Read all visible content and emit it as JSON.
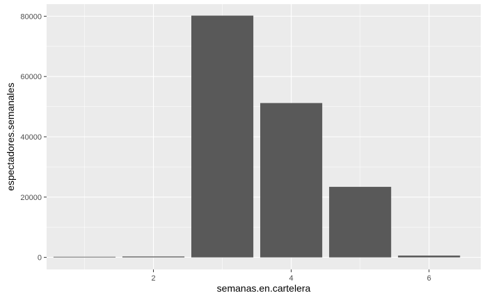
{
  "chart_data": {
    "type": "bar",
    "title": "",
    "xlabel": "semanas.en.cartelera",
    "ylabel": "espectadores.semanales",
    "x": [
      1,
      2,
      3,
      4,
      5,
      6
    ],
    "values": [
      200,
      300,
      80200,
      51200,
      23400,
      600
    ],
    "xlim": [
      0.45,
      6.75
    ],
    "ylim": [
      -4000,
      84000
    ],
    "x_ticks": [
      2,
      4,
      6
    ],
    "x_tick_labels": [
      "2",
      "4",
      "6"
    ],
    "y_ticks": [
      0,
      20000,
      40000,
      60000,
      80000
    ],
    "y_tick_labels": [
      "0",
      "20000",
      "40000",
      "60000",
      "80000"
    ],
    "grid": true,
    "legend": "none",
    "colors": {
      "panel": "#ebebeb",
      "grid_major": "#ffffff",
      "bar": "#595959",
      "tick_text": "#4d4d4d",
      "tick_mark": "#333333"
    }
  }
}
